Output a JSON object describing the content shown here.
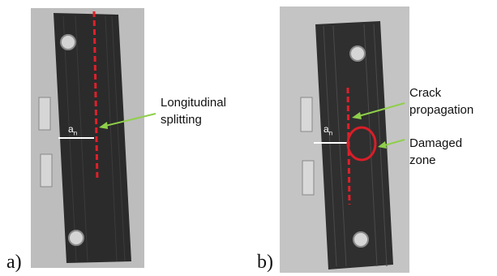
{
  "panel_a": {
    "letter": "a)",
    "dimension_label": "a",
    "dimension_subscript": "n",
    "callout": {
      "line1": "Longitudinal",
      "line2": "splitting"
    }
  },
  "panel_b": {
    "letter": "b)",
    "dimension_label": "a",
    "dimension_subscript": "n",
    "callout_crack": {
      "line1": "Crack",
      "line2": "propagation"
    },
    "callout_damage": {
      "line1": "Damaged",
      "line2": "zone"
    }
  },
  "colors": {
    "crack_line": "#e0202a",
    "arrow": "#8fcf4a",
    "damage_circle": "#d81e28",
    "specimen": "#2a2a2a",
    "background_photo": "#b9b9b9"
  }
}
